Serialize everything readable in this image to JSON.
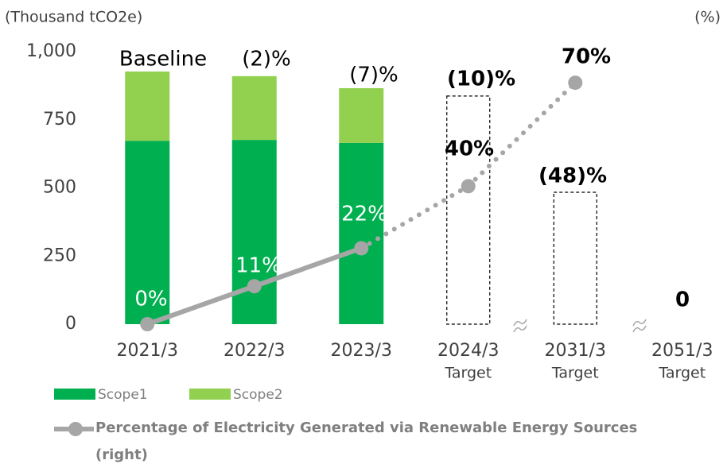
{
  "chart_data": {
    "type": "bar",
    "y_axis_label": "(Thousand tCO2e)",
    "y2_axis_label": "(%)",
    "categories": [
      "2021/3",
      "2022/3",
      "2023/3",
      "2024/3",
      "2031/3",
      "2051/3"
    ],
    "category_sublabels": [
      null,
      null,
      null,
      "Target",
      "Target",
      "Target"
    ],
    "ylim": [
      0,
      1000
    ],
    "yticks": [
      0,
      250,
      500,
      750,
      {
        "value": 1000,
        "label": "1,000"
      }
    ],
    "y2lim": [
      0,
      79
    ],
    "stacked": true,
    "series": [
      {
        "name": "Scope1",
        "color": "#00b050",
        "values": [
          673,
          676,
          665,
          null,
          null,
          null
        ]
      },
      {
        "name": "Scope2",
        "color": "#92d050",
        "values": [
          254,
          234,
          201,
          null,
          null,
          null
        ]
      }
    ],
    "targets": {
      "values": [
        null,
        null,
        null,
        837,
        484,
        0
      ],
      "style": "dashed",
      "color": "#000000"
    },
    "bar_labels": [
      "Baseline",
      "(2)%",
      "(7)%",
      "(10)%",
      "(48)%",
      "0"
    ],
    "line_series": {
      "name": "Percentage of Electricity Generated via Renewable Energy Sources (right)",
      "type": "line",
      "axis": "y2",
      "color": "#a6a6a6",
      "values": [
        0,
        11,
        22,
        40,
        70,
        null
      ],
      "value_labels": [
        "0%",
        "11%",
        "22%",
        "40%",
        "70%",
        null
      ],
      "solid_until_index": 2
    }
  }
}
